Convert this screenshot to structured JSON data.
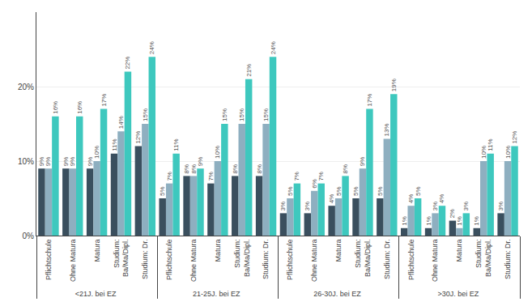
{
  "chart_data": {
    "type": "bar",
    "categories": [
      "Pflichtschule",
      "Ohne Matura",
      "Matura",
      "Studium:\nBa/Ma/Dipl.",
      "Studium: Dr.",
      "Pflichtschule",
      "Ohne Matura",
      "Matura",
      "Studium:\nBa/Ma/Dipl.",
      "Studium: Dr.",
      "Pflichtschule",
      "Ohne Matura",
      "Matura",
      "Studium:\nBa/Ma/Dipl.",
      "Studium: Dr.",
      "Pflichtschule",
      "Ohne Matura",
      "Matura",
      "Studium:\nBa/Ma/Dipl.",
      "Studium: Dr."
    ],
    "groups": [
      "<21J. bei EZ",
      "21-25J. bei EZ",
      "26-30J. bei EZ",
      ">30J. bei EZ"
    ],
    "series": [
      {
        "color": "#3a4f5e",
        "values": [
          9,
          9,
          9,
          11,
          12,
          5,
          8,
          7,
          8,
          8,
          3,
          3,
          4,
          5,
          5,
          1,
          1,
          2,
          1,
          3
        ],
        "value_labels": [
          "9%",
          "9%",
          "9%",
          "11%",
          "12%",
          "5%",
          "8%",
          "7%",
          "8%",
          "8%",
          "3%",
          "3%",
          "4%",
          "5%",
          "5%",
          "1%",
          "1%",
          "2%",
          "1%",
          "3%"
        ]
      },
      {
        "color": "#8eafc0",
        "values": [
          9,
          9,
          10,
          14,
          15,
          7,
          8,
          10,
          15,
          15,
          5,
          6,
          5,
          9,
          13,
          4,
          3,
          1,
          10,
          10
        ],
        "value_labels": [
          "9%",
          "9%",
          "10%",
          "14%",
          "15%",
          "7%",
          "8%",
          "10%",
          "15%",
          "15%",
          "5%",
          "6%",
          "5%",
          "9%",
          "13%",
          "4%",
          "3%",
          "1%",
          "10%",
          "10%"
        ]
      },
      {
        "color": "#3ec8be",
        "values": [
          16,
          16,
          17,
          22,
          24,
          11,
          9,
          15,
          21,
          24,
          7,
          7,
          8,
          17,
          19,
          5,
          4,
          3,
          11,
          12
        ],
        "value_labels": [
          "16%",
          "16%",
          "17%",
          "22%",
          "24%",
          "11%",
          "9%",
          "15%",
          "21%",
          "24%",
          "7%",
          "7%",
          "8%",
          "17%",
          "19%",
          "5%",
          "4%",
          "3%",
          "11%",
          "12%"
        ]
      }
    ],
    "ylim": [
      0,
      30
    ],
    "yticks": [
      {
        "value": 0,
        "label": "0%"
      },
      {
        "value": 10,
        "label": "10%"
      },
      {
        "value": 20,
        "label": "20%"
      }
    ],
    "grid": true,
    "data_labels": true
  }
}
